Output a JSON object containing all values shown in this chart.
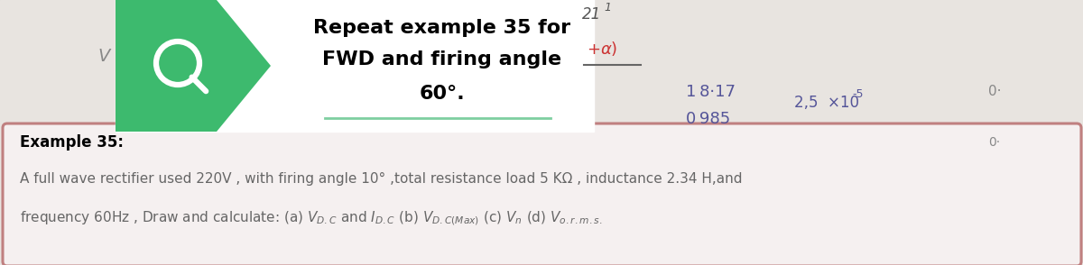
{
  "bg_color_top": "#c8c8c8",
  "bg_color_board": "#e8e4e0",
  "white_box_color": "#ffffff",
  "green_shape_color": "#3dba6e",
  "title_text_line1": "Repeat example 35 for",
  "title_text_line2": "FWD and firing angle",
  "title_text_line3": "60°.",
  "title_font_size": 16,
  "green_line_color": "#7ecfa0",
  "box_border_color": "#c08080",
  "box_fill_color": "#f5f0f0",
  "example_label": "Example 35:",
  "body_line1": "A full wave rectifier used 220V , with firing angle 10° ,total resistance load 5 KΩ , inductance 2.34 H,and",
  "body_line2_prefix": "frequency 60Hz , Draw and calculate: (a) ",
  "body_line2_suffix": " and ",
  "hw_alpha": "+α)",
  "hw_num1": "1 8·17",
  "hw_num2": "0 985",
  "hw_exp": "2,5  ×10",
  "hw_exp_sup": "-5",
  "hw_top_right": "21",
  "hw_top_right2": "1",
  "small_dot": "0·"
}
